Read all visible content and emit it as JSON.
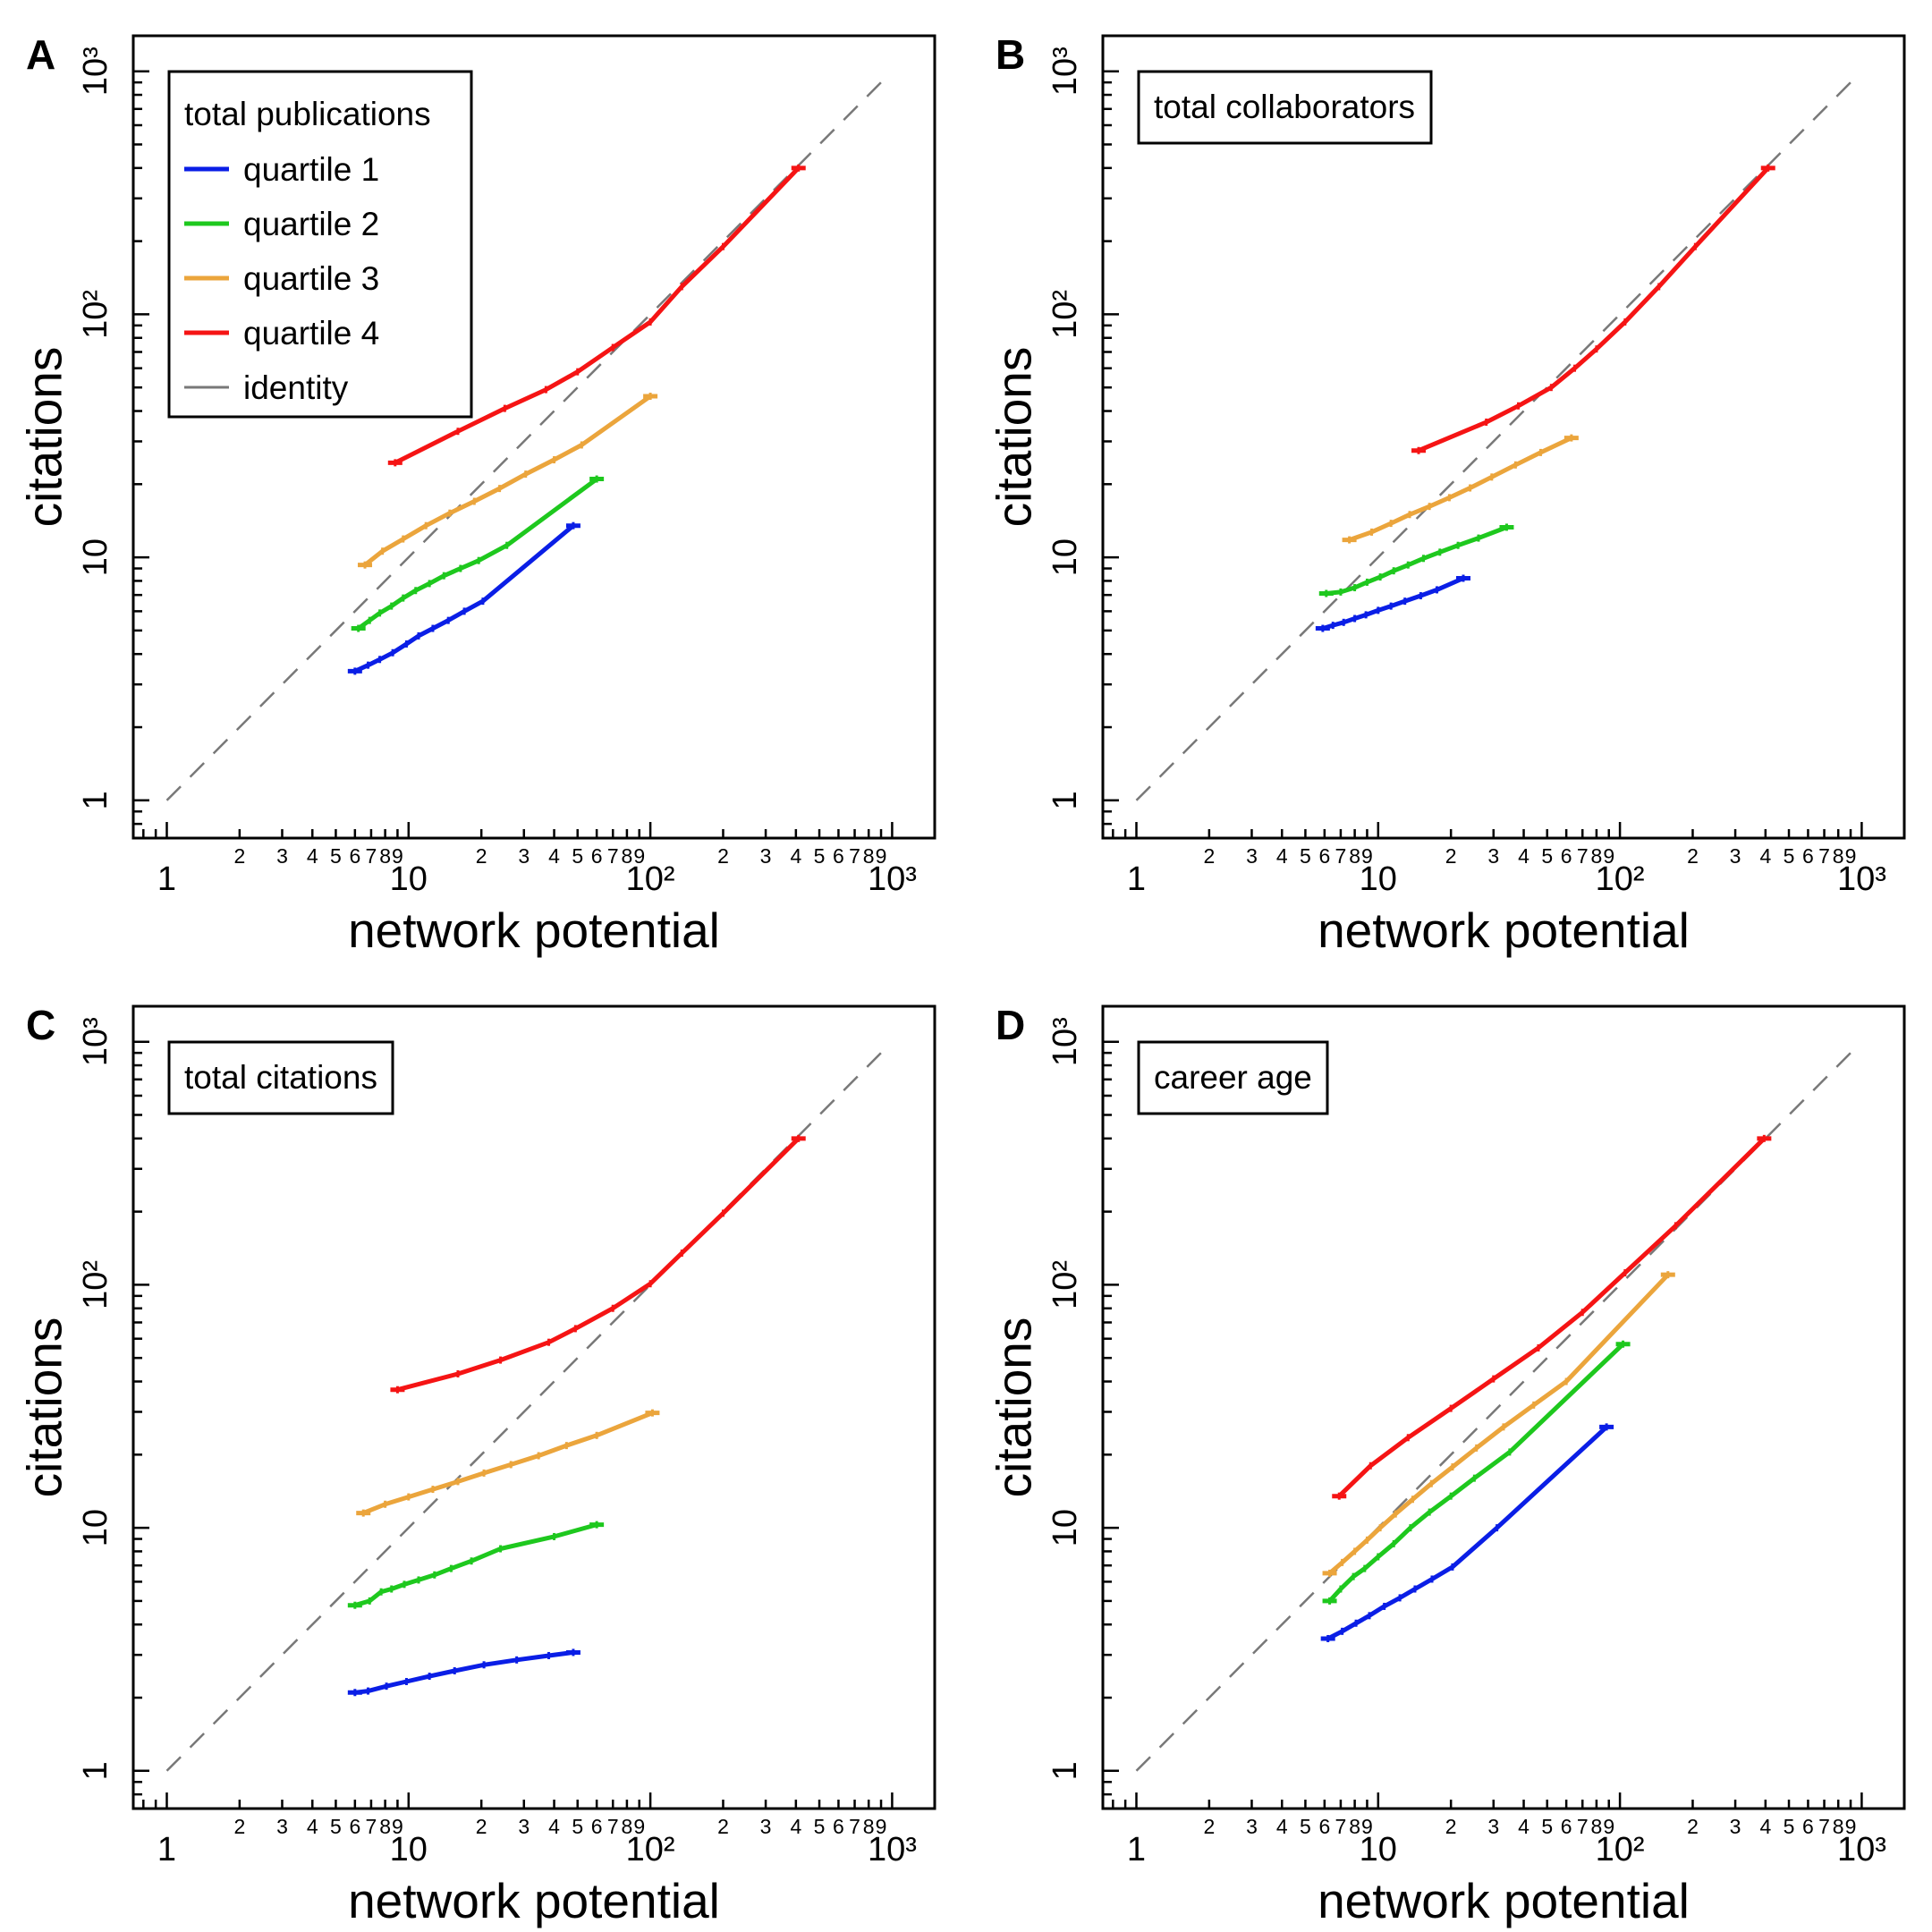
{
  "colors": {
    "quartile 1": "#0a1ee6",
    "quartile 2": "#1ec81e",
    "quartile 3": "#eba53c",
    "quartile 4": "#f51414",
    "identity": "#787878",
    "frame": "#000000"
  },
  "legend": {
    "entries": [
      {
        "label": "quartile 1",
        "style": "solid"
      },
      {
        "label": "quartile 2",
        "style": "solid"
      },
      {
        "label": "quartile 3",
        "style": "solid"
      },
      {
        "label": "quartile 4",
        "style": "solid"
      },
      {
        "label": "identity",
        "style": "dashed"
      }
    ]
  },
  "chart_data": [
    {
      "panel": "A",
      "type": "line",
      "title": "total publications",
      "xlabel": "network potential",
      "ylabel": "citations",
      "xscale": "log",
      "yscale": "log",
      "xlim": [
        0.75,
        1500
      ],
      "ylim": [
        0.7,
        1400
      ],
      "xticks": [
        {
          "value": 1,
          "label": "1"
        },
        {
          "value": 10,
          "label": "10"
        },
        {
          "value": 100,
          "label": "10²"
        },
        {
          "value": 1000,
          "label": "10³"
        }
      ],
      "yticks": [
        {
          "value": 1,
          "label": "1"
        },
        {
          "value": 10,
          "label": "10"
        },
        {
          "value": 100,
          "label": "10²"
        },
        {
          "value": 1000,
          "label": "10³"
        }
      ],
      "legend_position": "top-left",
      "series": [
        {
          "name": "quartile 1",
          "x": [
            6,
            6.8,
            7.6,
            8.6,
            9.8,
            11,
            12.6,
            14.6,
            17,
            20.3,
            48
          ],
          "y": [
            3.4,
            3.6,
            3.8,
            4.05,
            4.4,
            4.75,
            5.1,
            5.5,
            6,
            6.6,
            13.5
          ]
        },
        {
          "name": "quartile 2",
          "x": [
            6.2,
            6.9,
            7.6,
            8.5,
            9.5,
            10.7,
            12.2,
            14,
            16.4,
            19.5,
            25.5,
            60
          ],
          "y": [
            5.1,
            5.5,
            5.9,
            6.3,
            6.8,
            7.3,
            7.8,
            8.4,
            9,
            9.7,
            11.2,
            21
          ]
        },
        {
          "name": "quartile 3",
          "x": [
            6.6,
            7.8,
            9.5,
            11.8,
            14.8,
            18.7,
            23.8,
            30.5,
            40,
            52,
            100
          ],
          "y": [
            9.3,
            10.6,
            11.9,
            13.5,
            15.2,
            17,
            19.2,
            22,
            25.2,
            29,
            46
          ]
        },
        {
          "name": "quartile 4",
          "x": [
            8.8,
            16,
            25,
            37,
            50,
            70,
            100,
            135,
            200,
            410
          ],
          "y": [
            24.5,
            33,
            41,
            49,
            58,
            73,
            93,
            130,
            190,
            400
          ]
        }
      ],
      "identity": {
        "x": [
          1,
          900
        ],
        "y": [
          1,
          900
        ]
      }
    },
    {
      "panel": "B",
      "type": "line",
      "title": "total collaborators",
      "xlabel": "network potential",
      "ylabel": "citations",
      "xscale": "log",
      "yscale": "log",
      "xlim": [
        0.75,
        1500
      ],
      "ylim": [
        0.7,
        1400
      ],
      "xticks": [
        {
          "value": 1,
          "label": "1"
        },
        {
          "value": 10,
          "label": "10"
        },
        {
          "value": 100,
          "label": "10²"
        },
        {
          "value": 1000,
          "label": "10³"
        }
      ],
      "yticks": [
        {
          "value": 1,
          "label": "1"
        },
        {
          "value": 10,
          "label": "10"
        },
        {
          "value": 100,
          "label": "10²"
        },
        {
          "value": 1000,
          "label": "10³"
        }
      ],
      "series": [
        {
          "name": "quartile 1",
          "x": [
            5.9,
            6.5,
            7.2,
            8,
            8.9,
            10,
            11.3,
            12.9,
            15,
            17.5,
            22.5
          ],
          "y": [
            5.1,
            5.25,
            5.4,
            5.6,
            5.8,
            6.05,
            6.3,
            6.6,
            6.95,
            7.35,
            8.2
          ]
        },
        {
          "name": "quartile 2",
          "x": [
            6.1,
            7,
            8,
            9,
            10.2,
            11.6,
            13.3,
            15.4,
            18,
            21.4,
            26,
            34
          ],
          "y": [
            7.1,
            7.2,
            7.5,
            7.9,
            8.3,
            8.8,
            9.3,
            9.9,
            10.5,
            11.2,
            12,
            13.3
          ]
        },
        {
          "name": "quartile 3",
          "x": [
            7.6,
            9.4,
            11.3,
            13.5,
            16.3,
            19.7,
            24,
            29.5,
            37,
            47,
            63
          ],
          "y": [
            11.8,
            12.7,
            13.8,
            15,
            16.2,
            17.6,
            19.3,
            21.4,
            24,
            27,
            31
          ]
        },
        {
          "name": "quartile 4",
          "x": [
            14.7,
            28,
            38,
            52,
            65,
            80,
            105,
            145,
            205,
            410
          ],
          "y": [
            27.5,
            36,
            42,
            50,
            60,
            72,
            93,
            130,
            190,
            400
          ]
        }
      ],
      "identity": {
        "x": [
          1,
          900
        ],
        "y": [
          1,
          900
        ]
      }
    },
    {
      "panel": "C",
      "type": "line",
      "title": "total citations",
      "xlabel": "network potential",
      "ylabel": "citations",
      "xscale": "log",
      "yscale": "log",
      "xlim": [
        0.75,
        1500
      ],
      "ylim": [
        0.7,
        1400
      ],
      "xticks": [
        {
          "value": 1,
          "label": "1"
        },
        {
          "value": 10,
          "label": "10"
        },
        {
          "value": 100,
          "label": "10²"
        },
        {
          "value": 1000,
          "label": "10³"
        }
      ],
      "yticks": [
        {
          "value": 1,
          "label": "1"
        },
        {
          "value": 10,
          "label": "10"
        },
        {
          "value": 100,
          "label": "10²"
        },
        {
          "value": 1000,
          "label": "10³"
        }
      ],
      "series": [
        {
          "name": "quartile 1",
          "x": [
            6,
            6.8,
            8.1,
            9.8,
            12.2,
            15.5,
            20.5,
            28,
            38,
            48
          ],
          "y": [
            2.1,
            2.13,
            2.23,
            2.33,
            2.45,
            2.58,
            2.73,
            2.86,
            2.98,
            3.07
          ]
        },
        {
          "name": "quartile 2",
          "x": [
            6,
            6.9,
            7.7,
            8.5,
            9.6,
            11,
            12.8,
            15,
            18.2,
            24,
            40,
            60
          ],
          "y": [
            4.8,
            5,
            5.45,
            5.6,
            5.85,
            6.1,
            6.4,
            6.8,
            7.3,
            8.2,
            9.2,
            10.3
          ]
        },
        {
          "name": "quartile 3",
          "x": [
            6.5,
            8,
            10,
            12.6,
            16,
            20.5,
            26.5,
            34.5,
            45,
            60,
            102
          ],
          "y": [
            11.5,
            12.5,
            13.4,
            14.4,
            15.5,
            16.8,
            18.2,
            19.8,
            21.8,
            24,
            29.7
          ]
        },
        {
          "name": "quartile 4",
          "x": [
            9,
            16,
            24,
            38,
            49,
            70,
            100,
            135,
            200,
            410
          ],
          "y": [
            37,
            43,
            49,
            58,
            66,
            80,
            101,
            135,
            197,
            400
          ]
        }
      ],
      "identity": {
        "x": [
          1,
          900
        ],
        "y": [
          1,
          900
        ]
      }
    },
    {
      "panel": "D",
      "type": "line",
      "title": "career age",
      "xlabel": "network potential",
      "ylabel": "citations",
      "xscale": "log",
      "yscale": "log",
      "xlim": [
        0.75,
        1500
      ],
      "ylim": [
        0.7,
        1400
      ],
      "xticks": [
        {
          "value": 1,
          "label": "1"
        },
        {
          "value": 10,
          "label": "10"
        },
        {
          "value": 100,
          "label": "10²"
        },
        {
          "value": 1000,
          "label": "10³"
        }
      ],
      "yticks": [
        {
          "value": 1,
          "label": "1"
        },
        {
          "value": 10,
          "label": "10"
        },
        {
          "value": 100,
          "label": "10²"
        },
        {
          "value": 1000,
          "label": "10³"
        }
      ],
      "series": [
        {
          "name": "quartile 1",
          "x": [
            6.2,
            7.1,
            8.1,
            9.2,
            10.6,
            12.3,
            14.2,
            16.7,
            20.3,
            31,
            88
          ],
          "y": [
            3.5,
            3.75,
            4.05,
            4.35,
            4.75,
            5.15,
            5.6,
            6.15,
            6.9,
            10,
            26
          ]
        },
        {
          "name": "quartile 2",
          "x": [
            6.3,
            7,
            7.9,
            8.8,
            10,
            11.6,
            13.6,
            16.3,
            20,
            25,
            35,
            103
          ],
          "y": [
            5,
            5.6,
            6.3,
            6.8,
            7.6,
            8.6,
            10,
            11.6,
            13.5,
            16,
            20.5,
            57
          ]
        },
        {
          "name": "quartile 3",
          "x": [
            6.3,
            7.1,
            8,
            9,
            10.2,
            11.8,
            13.9,
            16.6,
            20.3,
            25.5,
            33,
            44,
            60,
            158
          ],
          "y": [
            6.5,
            7.2,
            8,
            8.9,
            10,
            11.4,
            13.1,
            15.2,
            17.8,
            21.3,
            26,
            32,
            40,
            110
          ]
        },
        {
          "name": "quartile 4",
          "x": [
            6.9,
            9.3,
            13.3,
            20,
            30,
            46,
            70,
            105,
            170,
            395
          ],
          "y": [
            13.5,
            18,
            23.5,
            31,
            41,
            55,
            77,
            112,
            175,
            400
          ]
        }
      ],
      "identity": {
        "x": [
          1,
          900
        ],
        "y": [
          1,
          900
        ]
      }
    }
  ]
}
